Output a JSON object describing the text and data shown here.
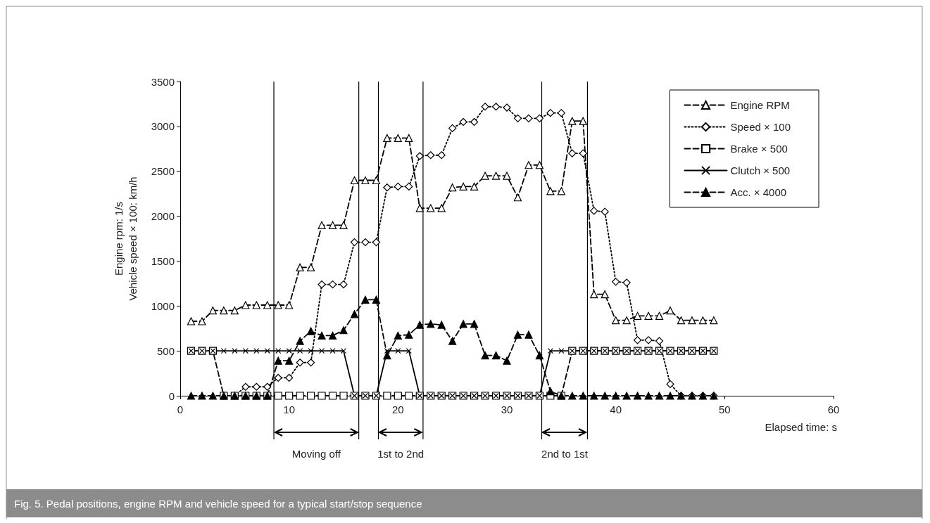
{
  "chart_data": {
    "type": "line",
    "title": "Fig. 5. Pedal positions, engine RPM and vehicle speed for a typical start/stop sequence",
    "xlabel": "Elapsed time: s",
    "ylabel": "Engine rpm: 1/s\nVehicle speed × 100: km/h",
    "x": [
      1,
      2,
      3,
      4,
      5,
      6,
      7,
      8,
      9,
      10,
      11,
      12,
      13,
      14,
      15,
      16,
      17,
      18,
      19,
      20,
      21,
      22,
      23,
      24,
      25,
      26,
      27,
      28,
      29,
      30,
      31,
      32,
      33,
      34,
      35,
      36,
      37,
      38,
      39,
      40,
      41,
      42,
      43,
      44,
      45,
      46,
      47,
      48,
      49
    ],
    "series": [
      {
        "name": "Engine RPM",
        "color": "#000000",
        "marker": "triangle",
        "line_style": "dashed",
        "values": [
          830,
          830,
          950,
          950,
          950,
          1010,
          1010,
          1010,
          1010,
          1010,
          1430,
          1430,
          1900,
          1900,
          1900,
          2400,
          2400,
          2400,
          2870,
          2870,
          2870,
          2090,
          2090,
          2090,
          2320,
          2330,
          2330,
          2450,
          2450,
          2450,
          2210,
          2570,
          2570,
          2280,
          2280,
          3060,
          3060,
          1130,
          1130,
          840,
          840,
          890,
          890,
          890,
          950,
          840,
          840,
          840,
          840
        ]
      },
      {
        "name": "Speed × 100",
        "color": "#000000",
        "marker": "diamond",
        "line_style": "dotted",
        "values": [
          null,
          null,
          null,
          0,
          0,
          100,
          100,
          100,
          200,
          200,
          370,
          370,
          1240,
          1240,
          1240,
          1710,
          1710,
          1710,
          2320,
          2330,
          2330,
          2670,
          2680,
          2680,
          2980,
          3050,
          3050,
          3220,
          3220,
          3210,
          3090,
          3090,
          3090,
          3150,
          3150,
          2700,
          2700,
          2060,
          2050,
          1270,
          1260,
          620,
          620,
          610,
          130,
          0,
          0,
          0,
          0
        ]
      },
      {
        "name": "Brake × 500",
        "color": "#000000",
        "marker": "square",
        "line_style": "dashed",
        "values": [
          500,
          500,
          500,
          0,
          0,
          0,
          0,
          0,
          0,
          0,
          0,
          0,
          0,
          0,
          0,
          0,
          0,
          0,
          0,
          0,
          0,
          0,
          0,
          0,
          0,
          0,
          0,
          0,
          0,
          0,
          0,
          0,
          0,
          0,
          0,
          500,
          500,
          500,
          500,
          500,
          500,
          500,
          500,
          500,
          500,
          500,
          500,
          500,
          500
        ]
      },
      {
        "name": "Clutch × 500",
        "color": "#000000",
        "marker": "cross",
        "line_style": "solid",
        "values": [
          500,
          500,
          500,
          500,
          500,
          500,
          500,
          500,
          500,
          500,
          500,
          500,
          500,
          500,
          500,
          0,
          0,
          0,
          500,
          500,
          500,
          0,
          0,
          0,
          0,
          0,
          0,
          0,
          0,
          0,
          0,
          0,
          0,
          500,
          500,
          500,
          500,
          500,
          500,
          500,
          500,
          500,
          500,
          500,
          500,
          500,
          500,
          500,
          500
        ]
      },
      {
        "name": "Acc. × 4000",
        "color": "#000000",
        "marker": "triangle",
        "line_style": "dashed",
        "values": [
          0,
          0,
          0,
          0,
          0,
          0,
          0,
          0,
          390,
          390,
          610,
          720,
          670,
          670,
          730,
          910,
          1070,
          1070,
          450,
          670,
          680,
          790,
          800,
          790,
          610,
          800,
          800,
          450,
          450,
          390,
          680,
          680,
          450,
          50,
          0,
          0,
          0,
          0,
          0,
          0,
          0,
          0,
          0,
          0,
          0,
          0,
          0,
          0,
          0
        ]
      }
    ],
    "xlim": [
      0,
      60
    ],
    "xticks": [
      0,
      10,
      20,
      30,
      40,
      50,
      60
    ],
    "ylim": [
      0,
      3500
    ],
    "yticks": [
      0,
      500,
      1000,
      1500,
      2000,
      2500,
      3000,
      3500
    ],
    "grid": false,
    "legend": "top right",
    "ref_lines": [
      {
        "axis": "x",
        "value": 8.6
      },
      {
        "axis": "x",
        "value": 16.4
      },
      {
        "axis": "x",
        "value": 18.2
      },
      {
        "axis": "x",
        "value": 22.3
      },
      {
        "axis": "x",
        "value": 33.2
      },
      {
        "axis": "x",
        "value": 37.4
      }
    ],
    "annotations": [
      "Moving off",
      "1st to 2nd",
      "2nd to 1st"
    ]
  }
}
